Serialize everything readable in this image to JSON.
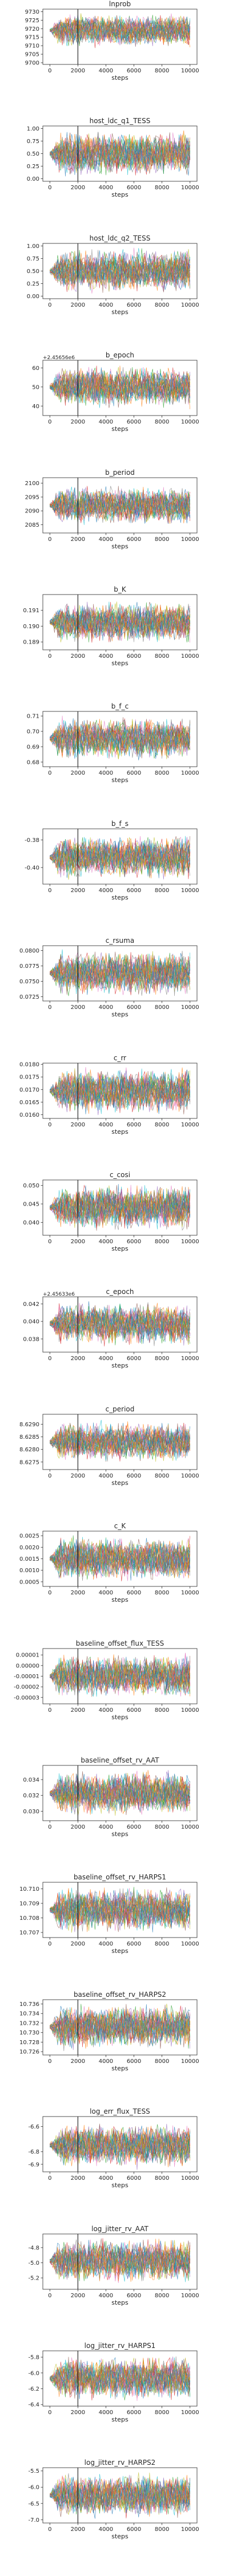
{
  "chart_data": [
    {
      "type": "line",
      "title": "lnprob",
      "xlabel": "steps",
      "ylim": [
        9699.0,
        9731.5
      ],
      "yticks": [
        "9700",
        "9705",
        "9710",
        "9715",
        "9720",
        "9725",
        "9730"
      ],
      "ytick_values": [
        9700,
        9705,
        9710,
        9715,
        9720,
        9725,
        9730
      ],
      "offset": "",
      "band": [
        9708,
        9730
      ],
      "burn_step": 2000
    },
    {
      "type": "line",
      "title": "host_ldc_q1_TESS",
      "xlabel": "steps",
      "ylim": [
        -0.05,
        1.05
      ],
      "yticks": [
        "0.00",
        "0.25",
        "0.50",
        "0.75",
        "1.00"
      ],
      "ytick_values": [
        0,
        0.25,
        0.5,
        0.75,
        1.0
      ],
      "offset": "",
      "band": [
        0.0,
        1.0
      ],
      "burn_step": 2000
    },
    {
      "type": "line",
      "title": "host_ldc_q2_TESS",
      "xlabel": "steps",
      "ylim": [
        -0.05,
        1.05
      ],
      "yticks": [
        "0.00",
        "0.25",
        "0.50",
        "0.75",
        "1.00"
      ],
      "ytick_values": [
        0,
        0.25,
        0.5,
        0.75,
        1.0
      ],
      "offset": "",
      "band": [
        0.0,
        1.0
      ],
      "burn_step": 2000
    },
    {
      "type": "line",
      "title": "b_epoch",
      "xlabel": "steps",
      "ylim": [
        35,
        64
      ],
      "yticks": [
        "40",
        "50",
        "60"
      ],
      "ytick_values": [
        40,
        50,
        60
      ],
      "offset": "+2.45656e6",
      "band": [
        38,
        62
      ],
      "burn_step": 2000
    },
    {
      "type": "line",
      "title": "b_period",
      "xlabel": "steps",
      "ylim": [
        2082,
        2102
      ],
      "yticks": [
        "2085",
        "2090",
        "2095",
        "2100"
      ],
      "ytick_values": [
        2085,
        2090,
        2095,
        2100
      ],
      "offset": "",
      "band": [
        2084,
        2100
      ],
      "burn_step": 2000
    },
    {
      "type": "line",
      "title": "b_K",
      "xlabel": "steps",
      "ylim": [
        0.1885,
        0.192
      ],
      "yticks": [
        "0.189",
        "0.190",
        "0.191"
      ],
      "ytick_values": [
        0.189,
        0.19,
        0.191
      ],
      "offset": "",
      "band": [
        0.1888,
        0.1917
      ],
      "burn_step": 2000
    },
    {
      "type": "line",
      "title": "b_f_c",
      "xlabel": "steps",
      "ylim": [
        0.677,
        0.713
      ],
      "yticks": [
        "0.68",
        "0.69",
        "0.70",
        "0.71"
      ],
      "ytick_values": [
        0.68,
        0.69,
        0.7,
        0.71
      ],
      "offset": "",
      "band": [
        0.68,
        0.711
      ],
      "burn_step": 2000
    },
    {
      "type": "line",
      "title": "b_f_s",
      "xlabel": "steps",
      "ylim": [
        -0.412,
        -0.372
      ],
      "yticks": [
        "-0.40",
        "-0.38"
      ],
      "ytick_values": [
        -0.4,
        -0.38
      ],
      "offset": "",
      "band": [
        -0.41,
        -0.375
      ],
      "burn_step": 2000
    },
    {
      "type": "line",
      "title": "c_rsuma",
      "xlabel": "steps",
      "ylim": [
        0.0718,
        0.0808
      ],
      "yticks": [
        "0.0725",
        "0.0750",
        "0.0775",
        "0.0800"
      ],
      "ytick_values": [
        0.0725,
        0.075,
        0.0775,
        0.08
      ],
      "offset": "",
      "band": [
        0.0722,
        0.0805
      ],
      "burn_step": 2000
    },
    {
      "type": "line",
      "title": "c_rr",
      "xlabel": "steps",
      "ylim": [
        0.01585,
        0.01805
      ],
      "yticks": [
        "0.0160",
        "0.0165",
        "0.0170",
        "0.0175",
        "0.0180"
      ],
      "ytick_values": [
        0.016,
        0.0165,
        0.017,
        0.0175,
        0.018
      ],
      "offset": "",
      "band": [
        0.0159,
        0.018
      ],
      "burn_step": 2000
    },
    {
      "type": "line",
      "title": "c_cosi",
      "xlabel": "steps",
      "ylim": [
        0.0365,
        0.0515
      ],
      "yticks": [
        "0.040",
        "0.045",
        "0.050"
      ],
      "ytick_values": [
        0.04,
        0.045,
        0.05
      ],
      "offset": "",
      "band": [
        0.037,
        0.051
      ],
      "burn_step": 2000
    },
    {
      "type": "line",
      "title": "c_epoch",
      "xlabel": "steps",
      "ylim": [
        0.0365,
        0.0428
      ],
      "yticks": [
        "0.038",
        "0.040",
        "0.042"
      ],
      "ytick_values": [
        0.038,
        0.04,
        0.042
      ],
      "offset": "+2.45633e6",
      "band": [
        0.037,
        0.0425
      ],
      "burn_step": 2000
    },
    {
      "type": "line",
      "title": "c_period",
      "xlabel": "steps",
      "ylim": [
        8.6272,
        8.6294
      ],
      "yticks": [
        "8.6275",
        "8.6280",
        "8.6285",
        "8.6290"
      ],
      "ytick_values": [
        8.6275,
        8.628,
        8.6285,
        8.629
      ],
      "offset": "",
      "band": [
        8.6274,
        8.6292
      ],
      "burn_step": 2000
    },
    {
      "type": "line",
      "title": "c_K",
      "xlabel": "steps",
      "ylim": [
        0.0003,
        0.0027
      ],
      "yticks": [
        "0.0005",
        "0.0010",
        "0.0015",
        "0.0020",
        "0.0025"
      ],
      "ytick_values": [
        0.0005,
        0.001,
        0.0015,
        0.002,
        0.0025
      ],
      "offset": "",
      "band": [
        0.0004,
        0.0026
      ],
      "burn_step": 2000
    },
    {
      "type": "line",
      "title": "baseline_offset_flux_TESS",
      "xlabel": "steps",
      "ylim": [
        -3.6e-05,
        1.6e-05
      ],
      "yticks": [
        "0.00001",
        "0.00000",
        "-0.00001",
        "-0.00002",
        "-0.00003"
      ],
      "ytick_values": [
        1e-05,
        0,
        -1e-05,
        -2e-05,
        -3e-05
      ],
      "offset": "",
      "band": [
        -3.3e-05,
        1.3e-05
      ],
      "burn_step": 2000
    },
    {
      "type": "line",
      "title": "baseline_offset_rv_AAT",
      "xlabel": "steps",
      "ylim": [
        0.0288,
        0.0358
      ],
      "yticks": [
        "0.030",
        "0.032",
        "0.034"
      ],
      "ytick_values": [
        0.03,
        0.032,
        0.034
      ],
      "offset": "",
      "band": [
        0.029,
        0.0355
      ],
      "burn_step": 2000
    },
    {
      "type": "line",
      "title": "baseline_offset_rv_HARPS1",
      "xlabel": "steps",
      "ylim": [
        10.70665,
        10.71045
      ],
      "yticks": [
        "10.707",
        "10.708",
        "10.709",
        "10.710"
      ],
      "ytick_values": [
        10.707,
        10.708,
        10.709,
        10.71
      ],
      "offset": "",
      "band": [
        10.7068,
        10.7103
      ],
      "burn_step": 2000
    },
    {
      "type": "line",
      "title": "baseline_offset_rv_HARPS2",
      "xlabel": "steps",
      "ylim": [
        10.7253,
        10.7369
      ],
      "yticks": [
        "10.726",
        "10.728",
        "10.730",
        "10.732",
        "10.734",
        "10.736"
      ],
      "ytick_values": [
        10.726,
        10.728,
        10.73,
        10.732,
        10.734,
        10.736
      ],
      "offset": "",
      "band": [
        10.7258,
        10.7365
      ],
      "burn_step": 2000
    },
    {
      "type": "line",
      "title": "log_err_flux_TESS",
      "xlabel": "steps",
      "ylim": [
        -6.96,
        -6.52
      ],
      "yticks": [
        "-6.6",
        "-6.8",
        "-6.9"
      ],
      "ytick_values": [
        -6.6,
        -6.8,
        -6.9
      ],
      "offset": "",
      "band": [
        -6.95,
        -6.55
      ],
      "burn_step": 2000
    },
    {
      "type": "line",
      "title": "log_jitter_rv_AAT",
      "xlabel": "steps",
      "ylim": [
        -5.35,
        -4.62
      ],
      "yticks": [
        "-4.8",
        "-5.0",
        "-5.2"
      ],
      "ytick_values": [
        -4.8,
        -5.0,
        -5.2
      ],
      "offset": "",
      "band": [
        -5.3,
        -4.65
      ],
      "burn_step": 2000
    },
    {
      "type": "line",
      "title": "log_jitter_rv_HARPS1",
      "xlabel": "steps",
      "ylim": [
        -6.42,
        -5.72
      ],
      "yticks": [
        "-5.8",
        "-6.0",
        "-6.2",
        "-6.4"
      ],
      "ytick_values": [
        -5.8,
        -6.0,
        -6.2,
        -6.4
      ],
      "offset": "",
      "band": [
        -6.38,
        -5.75
      ],
      "burn_step": 2000
    },
    {
      "type": "line",
      "title": "log_jitter_rv_HARPS2",
      "xlabel": "steps",
      "ylim": [
        -7.1,
        -5.4
      ],
      "yticks": [
        "-5.5",
        "-6.0",
        "-6.5",
        "-7.0"
      ],
      "ytick_values": [
        -5.5,
        -6.0,
        -6.5,
        -7.0
      ],
      "offset": "",
      "band": [
        -7.0,
        -5.5
      ],
      "burn_step": 2000
    }
  ],
  "x_ticks": [
    "0",
    "2000",
    "4000",
    "6000",
    "8000",
    "10000"
  ],
  "x_tick_values": [
    0,
    2000,
    4000,
    6000,
    8000,
    10000
  ],
  "x_range": [
    -500,
    10500
  ],
  "walkers": 32,
  "walker_colors": [
    "#1f77b4",
    "#ff7f0e",
    "#2ca02c",
    "#d62728",
    "#9467bd",
    "#8c564b",
    "#e377c2",
    "#7f7f7f",
    "#bcbd22",
    "#17becf"
  ]
}
